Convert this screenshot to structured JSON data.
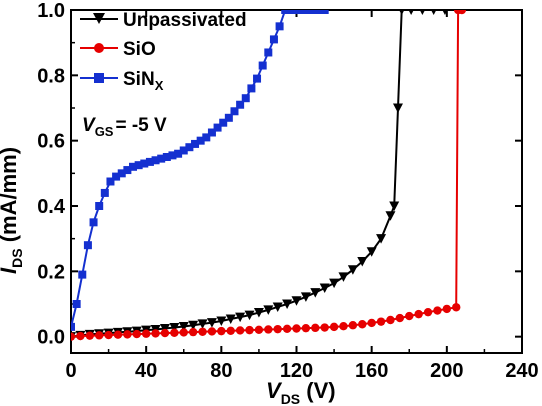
{
  "chart_data": {
    "type": "line",
    "xlabel": {
      "main": "V",
      "sub": "DS",
      "unit": " (V)"
    },
    "ylabel": {
      "main": "I",
      "sub": "DS",
      "unit": " (mA/mm)"
    },
    "xlim": [
      0,
      240
    ],
    "ylim": [
      -0.05,
      1.0
    ],
    "x_ticks": [
      0,
      40,
      80,
      120,
      160,
      200,
      240
    ],
    "y_ticks": [
      0.0,
      0.2,
      0.4,
      0.6,
      0.8,
      1.0
    ],
    "x_tick_labels": [
      "0",
      "40",
      "80",
      "120",
      "160",
      "200",
      "240"
    ],
    "y_tick_labels": [
      "0.0",
      "0.2",
      "0.4",
      "0.6",
      "0.8",
      "1.0"
    ],
    "grid": false,
    "legend_position": "top-left",
    "annotation": {
      "main": "V",
      "sub": "GS",
      "rest": "= -5 V"
    },
    "series": [
      {
        "name": "Unpassivated",
        "color": "#000000",
        "marker": "triangle-down",
        "x": [
          0,
          5,
          10,
          15,
          20,
          25,
          30,
          35,
          40,
          45,
          50,
          55,
          60,
          65,
          70,
          75,
          80,
          85,
          90,
          95,
          100,
          105,
          110,
          115,
          120,
          125,
          130,
          135,
          140,
          145,
          150,
          155,
          160,
          165,
          170,
          172,
          174,
          176,
          181,
          187,
          193,
          199
        ],
        "y": [
          0.0,
          0.004,
          0.007,
          0.009,
          0.011,
          0.013,
          0.015,
          0.017,
          0.02,
          0.022,
          0.025,
          0.028,
          0.031,
          0.035,
          0.039,
          0.043,
          0.048,
          0.054,
          0.06,
          0.066,
          0.074,
          0.082,
          0.091,
          0.1,
          0.11,
          0.122,
          0.135,
          0.149,
          0.164,
          0.183,
          0.205,
          0.23,
          0.26,
          0.3,
          0.37,
          0.4,
          0.7,
          1.0,
          1.0,
          1.0,
          1.0,
          1.0
        ]
      },
      {
        "name": "SiO",
        "color": "#e60000",
        "marker": "circle",
        "x": [
          0,
          5,
          10,
          15,
          20,
          25,
          30,
          35,
          40,
          45,
          50,
          55,
          60,
          65,
          70,
          75,
          80,
          85,
          90,
          95,
          100,
          105,
          110,
          115,
          120,
          125,
          130,
          135,
          140,
          145,
          150,
          155,
          160,
          165,
          170,
          175,
          180,
          185,
          190,
          195,
          200,
          205,
          206,
          208
        ],
        "y": [
          0.0,
          0.002,
          0.003,
          0.004,
          0.005,
          0.006,
          0.007,
          0.008,
          0.009,
          0.01,
          0.011,
          0.012,
          0.013,
          0.014,
          0.015,
          0.016,
          0.017,
          0.018,
          0.019,
          0.02,
          0.021,
          0.022,
          0.023,
          0.024,
          0.025,
          0.026,
          0.027,
          0.028,
          0.03,
          0.032,
          0.035,
          0.038,
          0.042,
          0.046,
          0.051,
          0.057,
          0.063,
          0.069,
          0.075,
          0.08,
          0.085,
          0.09,
          1.0,
          1.0
        ]
      },
      {
        "name": "SiN",
        "name_sub": "X",
        "color": "#1430d0",
        "marker": "square",
        "x": [
          0,
          3,
          6,
          9,
          12,
          15,
          18,
          21,
          24,
          27,
          30,
          33,
          36,
          39,
          42,
          45,
          48,
          51,
          54,
          57,
          60,
          63,
          66,
          69,
          72,
          75,
          78,
          81,
          84,
          87,
          90,
          93,
          96,
          99,
          102,
          105,
          108,
          111,
          114,
          117,
          120,
          123,
          126,
          129,
          132,
          135
        ],
        "y": [
          0.03,
          0.1,
          0.19,
          0.28,
          0.35,
          0.4,
          0.44,
          0.475,
          0.49,
          0.5,
          0.51,
          0.52,
          0.525,
          0.53,
          0.535,
          0.54,
          0.545,
          0.55,
          0.555,
          0.56,
          0.57,
          0.58,
          0.59,
          0.6,
          0.61,
          0.625,
          0.64,
          0.655,
          0.67,
          0.69,
          0.71,
          0.73,
          0.76,
          0.79,
          0.83,
          0.87,
          0.91,
          0.95,
          1.0,
          1.0,
          1.0,
          1.0,
          1.0,
          1.0,
          1.0,
          1.0
        ]
      }
    ]
  }
}
